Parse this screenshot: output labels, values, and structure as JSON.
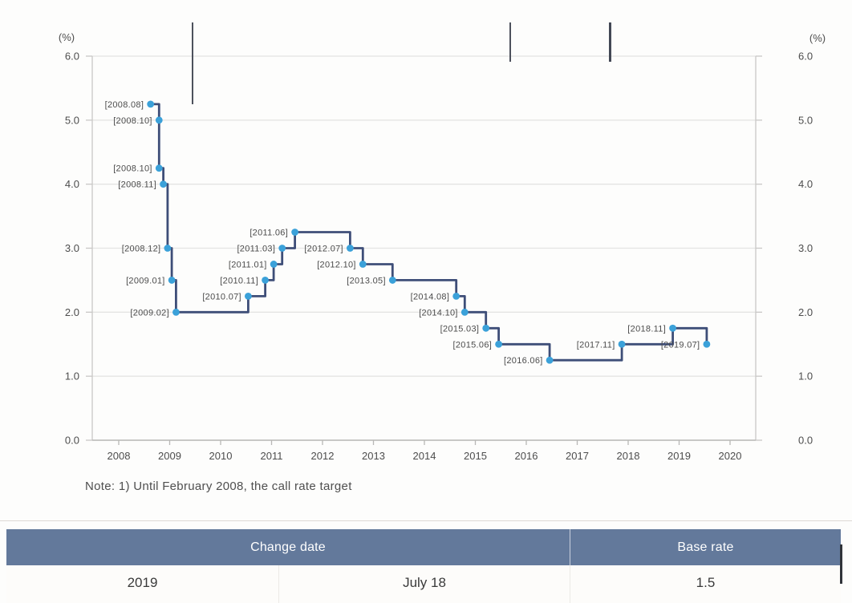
{
  "note": "Note: 1) Until February 2008, the call rate target",
  "chart_data": {
    "type": "line",
    "subtype": "step",
    "title": "",
    "xlabel": "",
    "ylabel": "(%)",
    "y_unit_left": "(%)",
    "y_unit_right": "(%)",
    "grid": true,
    "ylim": [
      0.0,
      6.0
    ],
    "y_ticks": [
      "6.0",
      "5.0",
      "4.0",
      "3.0",
      "2.0",
      "1.0",
      "0.0"
    ],
    "x_ticks": [
      "2008",
      "2009",
      "2010",
      "2011",
      "2012",
      "2013",
      "2014",
      "2015",
      "2016",
      "2017",
      "2018",
      "2019",
      "2020"
    ],
    "line_color": "#3e4e78",
    "marker_color": "#3ba1d9",
    "label_color": "#4c4c4c",
    "points": [
      {
        "label": "[2008.08]",
        "date": "2008.08",
        "rate": 5.25
      },
      {
        "label": "[2008.10]",
        "date": "2008.10",
        "rate": 5.0
      },
      {
        "label": "[2008.10]",
        "date": "2008.10",
        "rate": 4.25
      },
      {
        "label": "[2008.11]",
        "date": "2008.11",
        "rate": 4.0
      },
      {
        "label": "[2008.12]",
        "date": "2008.12",
        "rate": 3.0
      },
      {
        "label": "[2009.01]",
        "date": "2009.01",
        "rate": 2.5
      },
      {
        "label": "[2009.02]",
        "date": "2009.02",
        "rate": 2.0
      },
      {
        "label": "[2010.07]",
        "date": "2010.07",
        "rate": 2.25
      },
      {
        "label": "[2010.11]",
        "date": "2010.11",
        "rate": 2.5
      },
      {
        "label": "[2011.01]",
        "date": "2011.01",
        "rate": 2.75
      },
      {
        "label": "[2011.03]",
        "date": "2011.03",
        "rate": 3.0
      },
      {
        "label": "[2011.06]",
        "date": "2011.06",
        "rate": 3.25
      },
      {
        "label": "[2012.07]",
        "date": "2012.07",
        "rate": 3.0
      },
      {
        "label": "[2012.10]",
        "date": "2012.10",
        "rate": 2.75
      },
      {
        "label": "[2013.05]",
        "date": "2013.05",
        "rate": 2.5
      },
      {
        "label": "[2014.08]",
        "date": "2014.08",
        "rate": 2.25
      },
      {
        "label": "[2014.10]",
        "date": "2014.10",
        "rate": 2.0
      },
      {
        "label": "[2015.03]",
        "date": "2015.03",
        "rate": 1.75
      },
      {
        "label": "[2015.06]",
        "date": "2015.06",
        "rate": 1.5
      },
      {
        "label": "[2016.06]",
        "date": "2016.06",
        "rate": 1.25
      },
      {
        "label": "[2017.11]",
        "date": "2017.11",
        "rate": 1.5
      },
      {
        "label": "[2018.11]",
        "date": "2018.11",
        "rate": 1.75
      },
      {
        "label": "[2019.07]",
        "date": "2019.07",
        "rate": 1.5
      }
    ]
  },
  "table": {
    "headers": [
      "Change date",
      "Base rate"
    ],
    "row": {
      "year": "2019",
      "date": "July 18",
      "rate": "1.5"
    }
  }
}
